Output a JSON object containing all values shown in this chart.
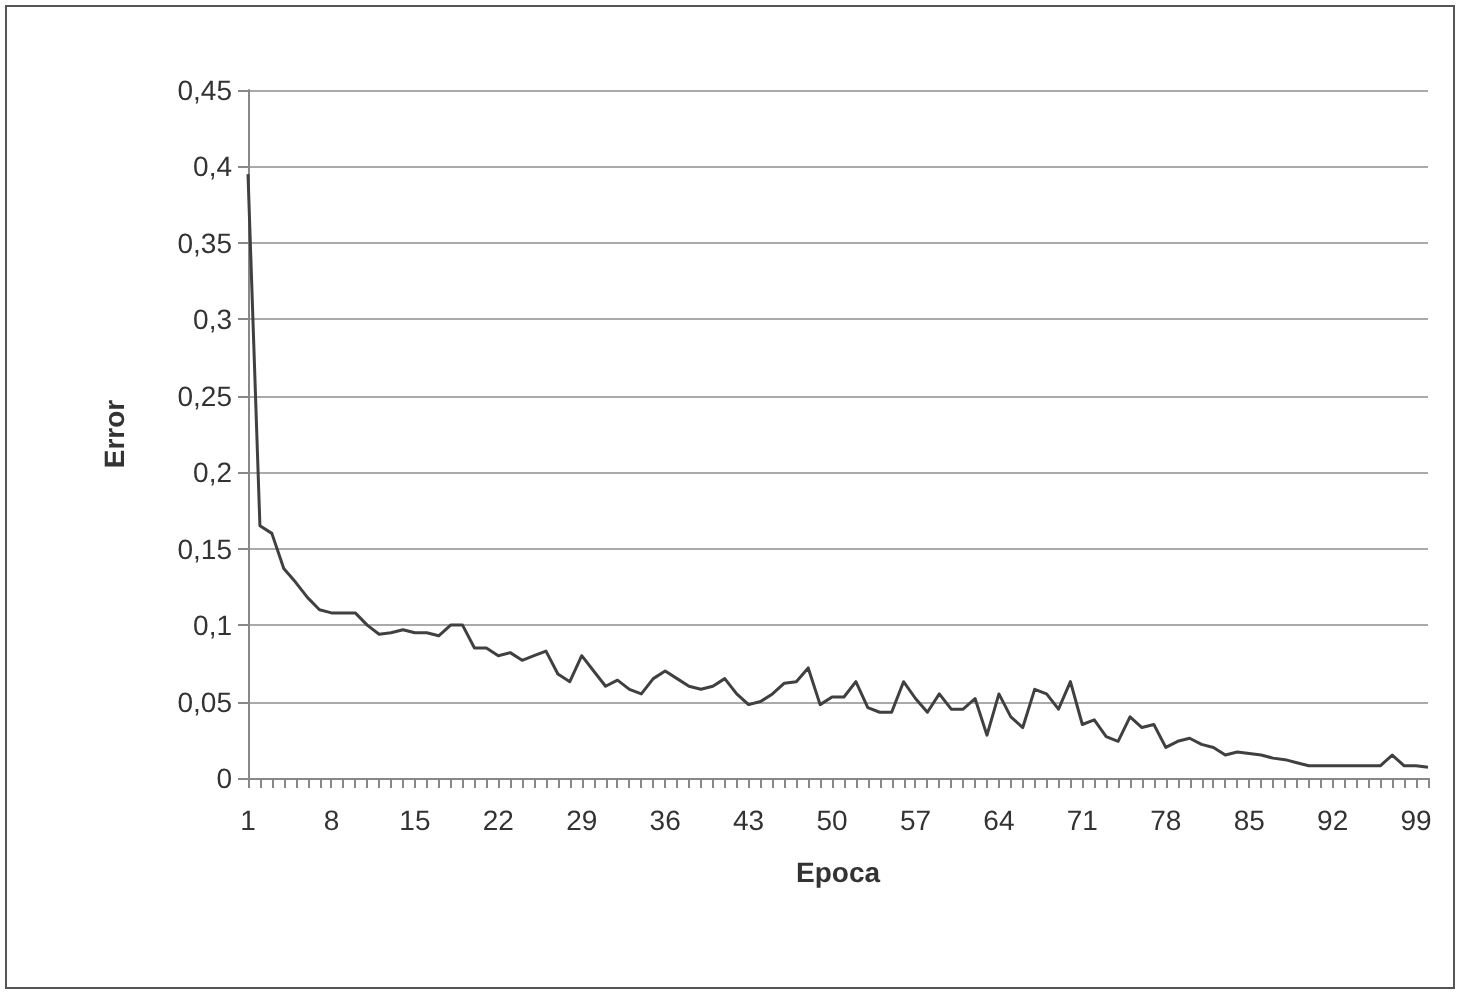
{
  "chart_data": {
    "type": "line",
    "xlabel": "Epoca",
    "ylabel": "Error",
    "categories": [
      "1",
      null,
      null,
      null,
      null,
      null,
      null,
      "8",
      null,
      null,
      null,
      null,
      null,
      null,
      "15",
      null,
      null,
      null,
      null,
      null,
      null,
      "22",
      null,
      null,
      null,
      null,
      null,
      null,
      "29",
      null,
      null,
      null,
      null,
      null,
      null,
      "36",
      null,
      null,
      null,
      null,
      null,
      null,
      "43",
      null,
      null,
      null,
      null,
      null,
      null,
      "50",
      null,
      null,
      null,
      null,
      null,
      null,
      "57",
      null,
      null,
      null,
      null,
      null,
      null,
      "64",
      null,
      null,
      null,
      null,
      null,
      null,
      "71",
      null,
      null,
      null,
      null,
      null,
      null,
      "78",
      null,
      null,
      null,
      null,
      null,
      null,
      "85",
      null,
      null,
      null,
      null,
      null,
      null,
      "92",
      null,
      null,
      null,
      null,
      null,
      null,
      "99",
      null
    ],
    "series": [
      {
        "color": "#404040",
        "values": [
          0.395,
          0.165,
          0.16,
          0.137,
          0.128,
          0.118,
          0.11,
          0.108,
          0.108,
          0.108,
          0.1,
          0.094,
          0.095,
          0.097,
          0.095,
          0.095,
          0.093,
          0.1,
          0.1,
          0.085,
          0.085,
          0.08,
          0.082,
          0.077,
          0.08,
          0.083,
          0.068,
          0.063,
          0.08,
          0.07,
          0.06,
          0.064,
          0.058,
          0.055,
          0.065,
          0.07,
          0.065,
          0.06,
          0.058,
          0.06,
          0.065,
          0.055,
          0.048,
          0.05,
          0.055,
          0.062,
          0.063,
          0.072,
          0.048,
          0.053,
          0.053,
          0.063,
          0.046,
          0.043,
          0.043,
          0.063,
          0.052,
          0.043,
          0.055,
          0.045,
          0.045,
          0.052,
          0.028,
          0.055,
          0.04,
          0.033,
          0.058,
          0.055,
          0.045,
          0.063,
          0.035,
          0.038,
          0.027,
          0.024,
          0.04,
          0.033,
          0.035,
          0.02,
          0.024,
          0.026,
          0.022,
          0.02,
          0.015,
          0.017,
          0.016,
          0.015,
          0.013,
          0.012,
          0.01,
          0.008,
          0.008,
          0.008,
          0.008,
          0.008,
          0.008,
          0.008,
          0.015,
          0.008,
          0.008,
          0.007
        ]
      }
    ],
    "ylim": [
      0,
      0.45
    ],
    "yticks": [
      0,
      {
        "value": 0.05,
        "label": "0,05"
      },
      {
        "value": 0.1,
        "label": "0,1"
      },
      {
        "value": 0.15,
        "label": "0,15"
      },
      {
        "value": 0.2,
        "label": "0,2"
      },
      {
        "value": 0.25,
        "label": "0,25"
      },
      {
        "value": 0.3,
        "label": "0,3"
      },
      {
        "value": 0.35,
        "label": "0,35"
      },
      {
        "value": 0.4,
        "label": "0,4"
      },
      {
        "value": 0.45,
        "label": "0,45"
      }
    ],
    "grid": "y",
    "marker": "none",
    "line_style": "solid"
  }
}
